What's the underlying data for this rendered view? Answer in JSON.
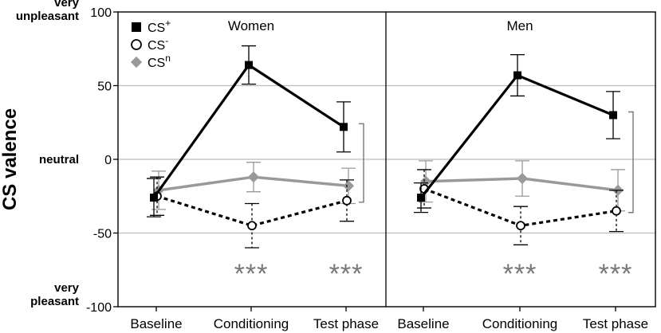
{
  "chart_data": {
    "type": "line",
    "ylabel": "CS valence",
    "ylim": [
      -100,
      100
    ],
    "yticks": [
      -100,
      -50,
      0,
      50,
      100
    ],
    "y_anchor_labels": [
      {
        "value": 100,
        "lines": [
          "very",
          "unpleasant"
        ]
      },
      {
        "value": 0,
        "lines": [
          "neutral"
        ]
      },
      {
        "value": -100,
        "lines": [
          "very",
          "pleasant"
        ]
      }
    ],
    "gridlines": [
      50,
      -50
    ],
    "panels": [
      {
        "title": "Women",
        "categories": [
          "Baseline",
          "Conditioning",
          "Test phase"
        ],
        "series": [
          {
            "name": "CS+",
            "key": "plus",
            "values": [
              -26,
              64,
              22
            ],
            "err": [
              13,
              13,
              17
            ]
          },
          {
            "name": "CS-",
            "key": "minus",
            "values": [
              -25,
              -45,
              -28
            ],
            "err": [
              13,
              15,
              14
            ]
          },
          {
            "name": "CSn",
            "key": "n",
            "values": [
              -21,
              -12,
              -18
            ],
            "err": [
              13,
              10,
              12
            ]
          }
        ],
        "significance": [
          {
            "category": "Conditioning",
            "label": "***"
          },
          {
            "category": "Test phase",
            "label": "***"
          }
        ]
      },
      {
        "title": "Men",
        "categories": [
          "Baseline",
          "Conditioning",
          "Test phase"
        ],
        "series": [
          {
            "name": "CS+",
            "key": "plus",
            "values": [
              -26,
              57,
              30
            ],
            "err": [
              10,
              14,
              16
            ]
          },
          {
            "name": "CS-",
            "key": "minus",
            "values": [
              -20,
              -45,
              -35
            ],
            "err": [
              13,
              13,
              14
            ]
          },
          {
            "name": "CSn",
            "key": "n",
            "values": [
              -15,
              -13,
              -21
            ],
            "err": [
              14,
              12,
              14
            ]
          }
        ],
        "significance": [
          {
            "category": "Conditioning",
            "label": "***"
          },
          {
            "category": "Test phase",
            "label": "***"
          }
        ]
      }
    ],
    "legend": {
      "position": "top-left",
      "entries": [
        {
          "key": "plus",
          "base": "CS",
          "sup": "+"
        },
        {
          "key": "minus",
          "base": "CS",
          "sup": "-"
        },
        {
          "key": "n",
          "base": "CS",
          "sup": "n"
        }
      ]
    },
    "colors": {
      "plus": "#000000",
      "minus": "#000000",
      "n": "#999999",
      "grid": "#bbbbbb",
      "sig": "#777777"
    }
  }
}
